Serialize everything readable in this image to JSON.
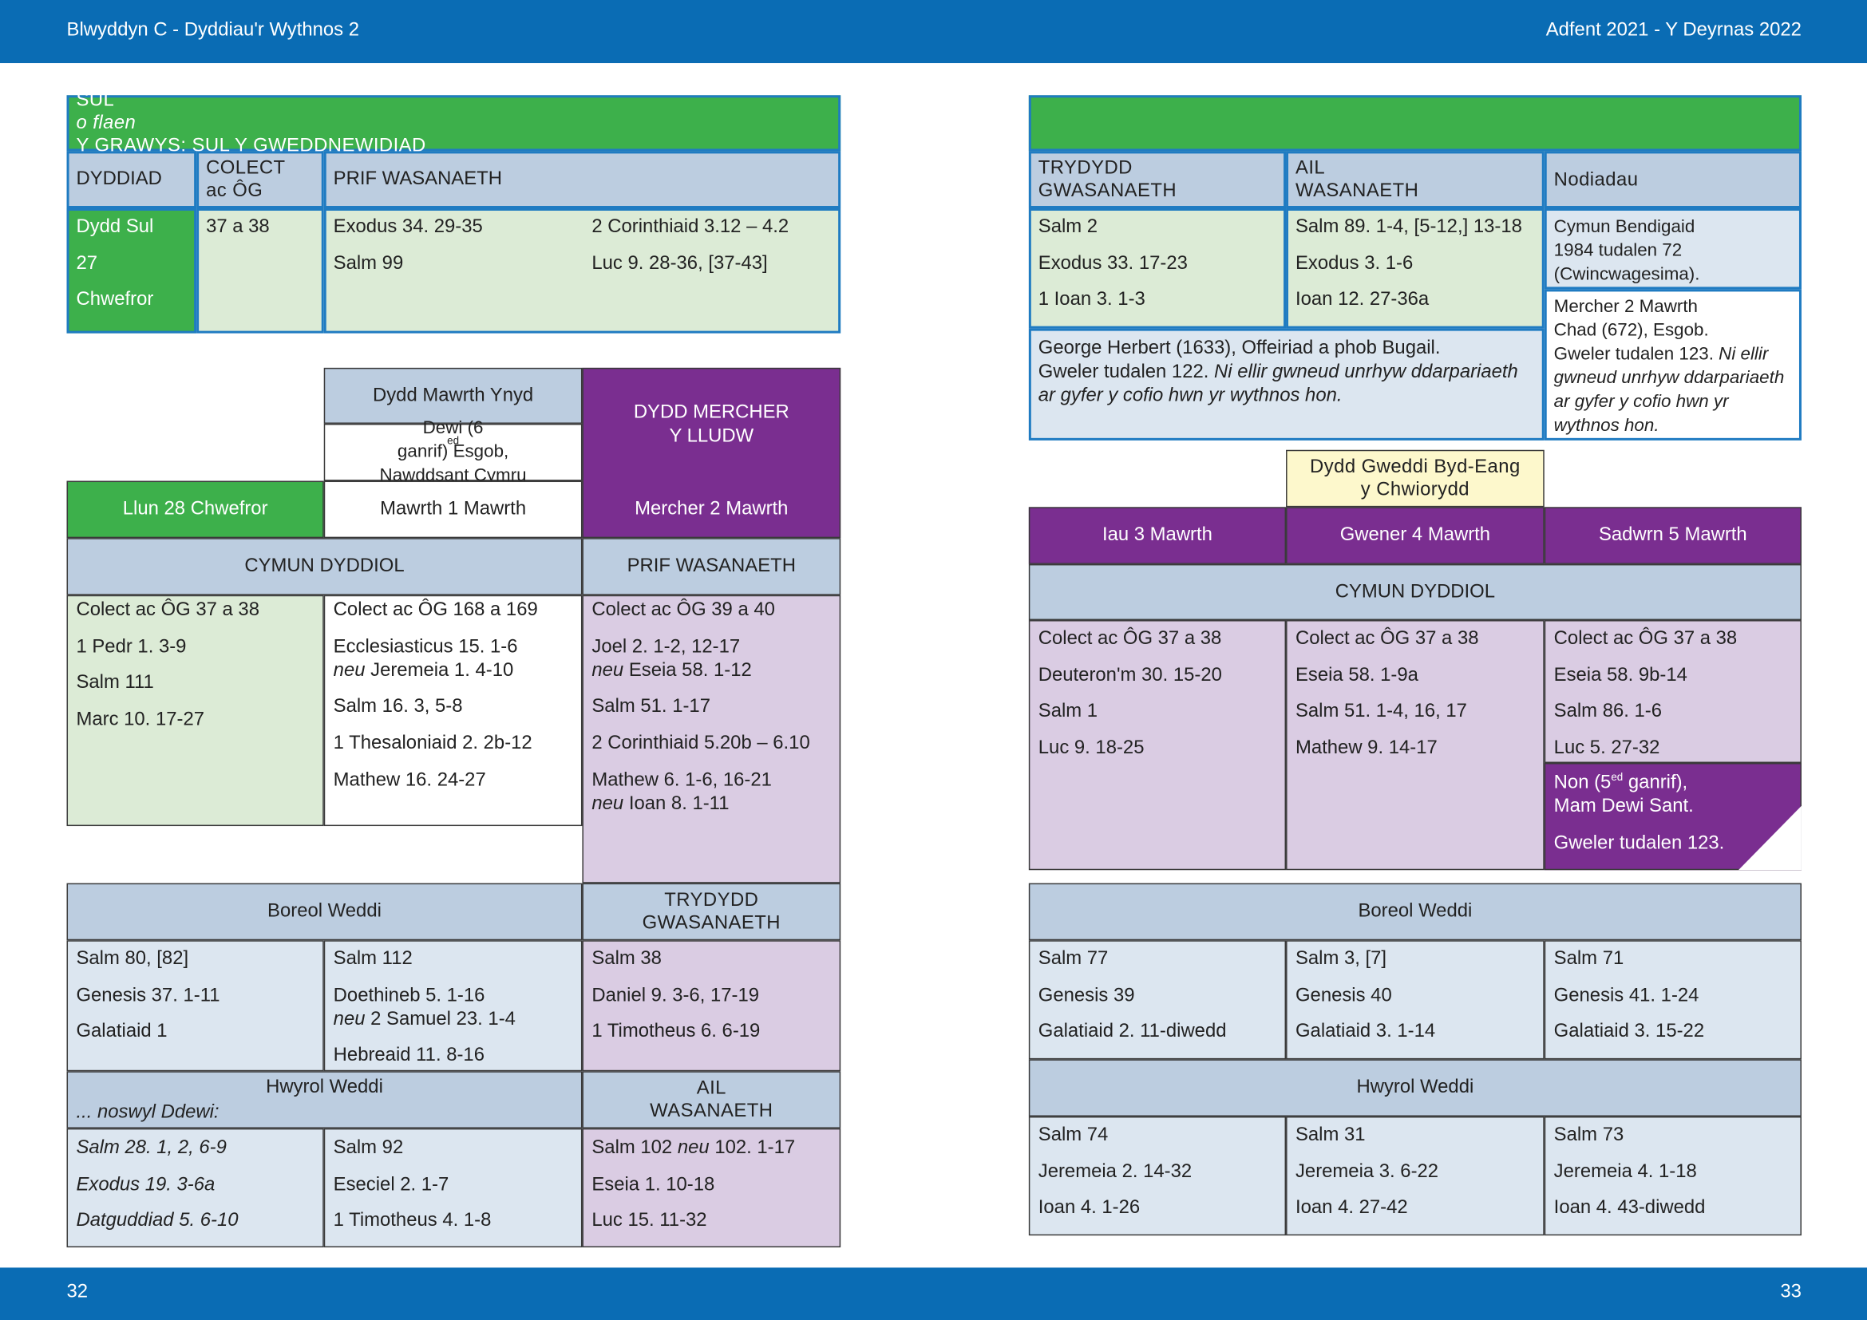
{
  "header": {
    "left": "Blwyddyn  C - Dyddiau'r Wythnos 2",
    "right": "Adfent 2021 - Y Deyrnas 2022"
  },
  "footer": {
    "left": "32",
    "right": "33"
  },
  "sunday": {
    "title": [
      "SUL ",
      "o flaen",
      " Y GRAWYS: SUL Y GWEDDNEWIDIAD"
    ],
    "headers": [
      "DYDDIAD",
      "COLECT\nac ÔG",
      "PRIF WASANAETH"
    ],
    "date": [
      "Dydd Sul",
      "27",
      "Chwefror"
    ],
    "colect": [
      "37 a 38"
    ],
    "readings1": [
      "Exodus 34. 29-35",
      "Salm 99"
    ],
    "readings2": [
      "2 Corinthiaid 3.12 – 4.2",
      "Luc 9. 28-36, [37-43]"
    ],
    "right_headers": [
      "TRYDYDD\nGWASANAETH",
      "AIL\nWASANAETH",
      "Nodiadau"
    ],
    "third": [
      "Salm 2",
      "Exodus 33. 17-23",
      "1 Ioan 3. 1-3"
    ],
    "second": [
      "Salm 89. 1-4, [5-12,] 13-18",
      "Exodus 3. 1-6",
      "Ioan 12. 27-36a"
    ],
    "note1": [
      "Cymun Bendigaid\n1984 tudalen 72\n(Cwincwagesima)."
    ],
    "note2": [
      [
        "Mercher 2 Mawrth\nChad (672), Esgob.\nGweler tudalen 123. ",
        "Ni ellir gwneud unrhyw ddarpariaeth ar gyfer y cofio hwn yr wythnos hon."
      ]
    ],
    "note3": [
      [
        "George Herbert (1633), Offeiriad a phob Bugail.\nGweler tudalen 122. ",
        "Ni ellir gwneud unrhyw ddarpariaeth ar gyfer y cofio hwn yr wythnos hon."
      ]
    ]
  },
  "left": {
    "llun": "Llun 28 Chwefror",
    "mawrth": {
      "title": "Dydd Mawrth Ynyd",
      "commem": [
        "Dewi (6",
        "ed",
        " ganrif) Esgob,\nNawddsant Cymru"
      ],
      "date": "Mawrth 1 Mawrth"
    },
    "mercher": {
      "title": "DYDD MERCHER\nY LLUDW",
      "date": "Mercher 2 Mawrth"
    },
    "cymun": {
      "heading": "CYMUN DYDDIOL",
      "prif": "PRIF WASANAETH",
      "col1": [
        "Colect ac ÔG 37 a 38",
        "1 Pedr 1. 3-9",
        "Salm 111",
        "Marc 10. 17-27"
      ],
      "col2": [
        "Colect ac ÔG 168 a 169",
        [
          "Ecclesiasticus 15. 1-6\n",
          "neu",
          " Jeremeia 1. 4-10"
        ],
        "Salm 16. 3, 5-8",
        "1 Thesaloniaid 2. 2b-12",
        "Mathew 16. 24-27"
      ],
      "col3": [
        "Colect ac ÔG 39 a 40",
        [
          "Joel 2. 1-2, 12-17\n",
          "neu",
          " Eseia 58. 1-12"
        ],
        "Salm 51. 1-17",
        "2 Corinthiaid 5.20b – 6.10",
        [
          "Mathew 6. 1-6, 16-21\n",
          "neu",
          " Ioan 8. 1-11"
        ]
      ]
    },
    "boreol": {
      "heading": "Boreol Weddi",
      "trydydd": "TRYDYDD\nGWASANAETH",
      "col1": [
        "Salm 80, [82]",
        "Genesis 37. 1-11",
        "Galatiaid 1"
      ],
      "col2": [
        "Salm 112",
        [
          "Doethineb 5. 1-16\n",
          "neu",
          " 2 Samuel 23. 1-4"
        ],
        "Hebreaid 11. 8-16"
      ],
      "col3": [
        "Salm 38",
        "Daniel 9. 3-6, 17-19",
        "1 Timotheus 6. 6-19"
      ]
    },
    "hwyrol": {
      "heading": "Hwyrol Weddi",
      "noswyl": "... noswyl Ddewi:",
      "ail": "AIL\nWASANAETH",
      "col1": [
        "Salm 28. 1, 2, 6-9",
        "Exodus 19. 3-6a",
        "Datguddiad 5. 6-10"
      ],
      "col2": [
        "Salm 92",
        "Eseciel 2. 1-7",
        "1 Timotheus 4. 1-8"
      ],
      "col3": [
        [
          "Salm 102 ",
          "neu",
          " 102. 1-17"
        ],
        "Eseia 1. 10-18",
        "Luc 15. 11-32"
      ]
    }
  },
  "right": {
    "gweddi": "Dydd Gweddi Byd-Eang\ny Chwiorydd",
    "dates": [
      "Iau 3 Mawrth",
      "Gwener 4 Mawrth",
      "Sadwrn 5 Mawrth"
    ],
    "cymun": {
      "heading": "CYMUN DYDDIOL",
      "cols": [
        [
          "Colect ac ÔG 37 a 38",
          "Deuteron'm 30. 15-20",
          "Salm 1",
          "Luc 9. 18-25"
        ],
        [
          "Colect ac ÔG 37 a 38",
          "Eseia 58. 1-9a",
          "Salm 51. 1-4, 16, 17",
          "Mathew 9. 14-17"
        ],
        [
          "Colect ac ÔG 37 a 38",
          "Eseia 58. 9b-14",
          "Salm 86. 1-6",
          "Luc 5. 27-32"
        ]
      ]
    },
    "non": [
      [
        "Non (5",
        "ed",
        " ganrif),\nMam Dewi Sant."
      ],
      "Gweler tudalen 123."
    ],
    "boreol": {
      "heading": "Boreol Weddi",
      "cols": [
        [
          "Salm 77",
          "Genesis 39",
          "Galatiaid 2. 11-diwedd"
        ],
        [
          "Salm 3, [7]",
          "Genesis 40",
          "Galatiaid 3. 1-14"
        ],
        [
          "Salm 71",
          "Genesis 41. 1-24",
          "Galatiaid 3. 15-22"
        ]
      ]
    },
    "hwyrol": {
      "heading": "Hwyrol Weddi",
      "cols": [
        [
          "Salm 74",
          "Jeremeia 2. 14-32",
          "Ioan 4. 1-26"
        ],
        [
          "Salm 31",
          "Jeremeia 3. 6-22",
          "Ioan 4. 27-42"
        ],
        [
          "Salm 73",
          "Jeremeia 4. 1-18",
          "Ioan 4. 43-diwedd"
        ]
      ]
    }
  }
}
